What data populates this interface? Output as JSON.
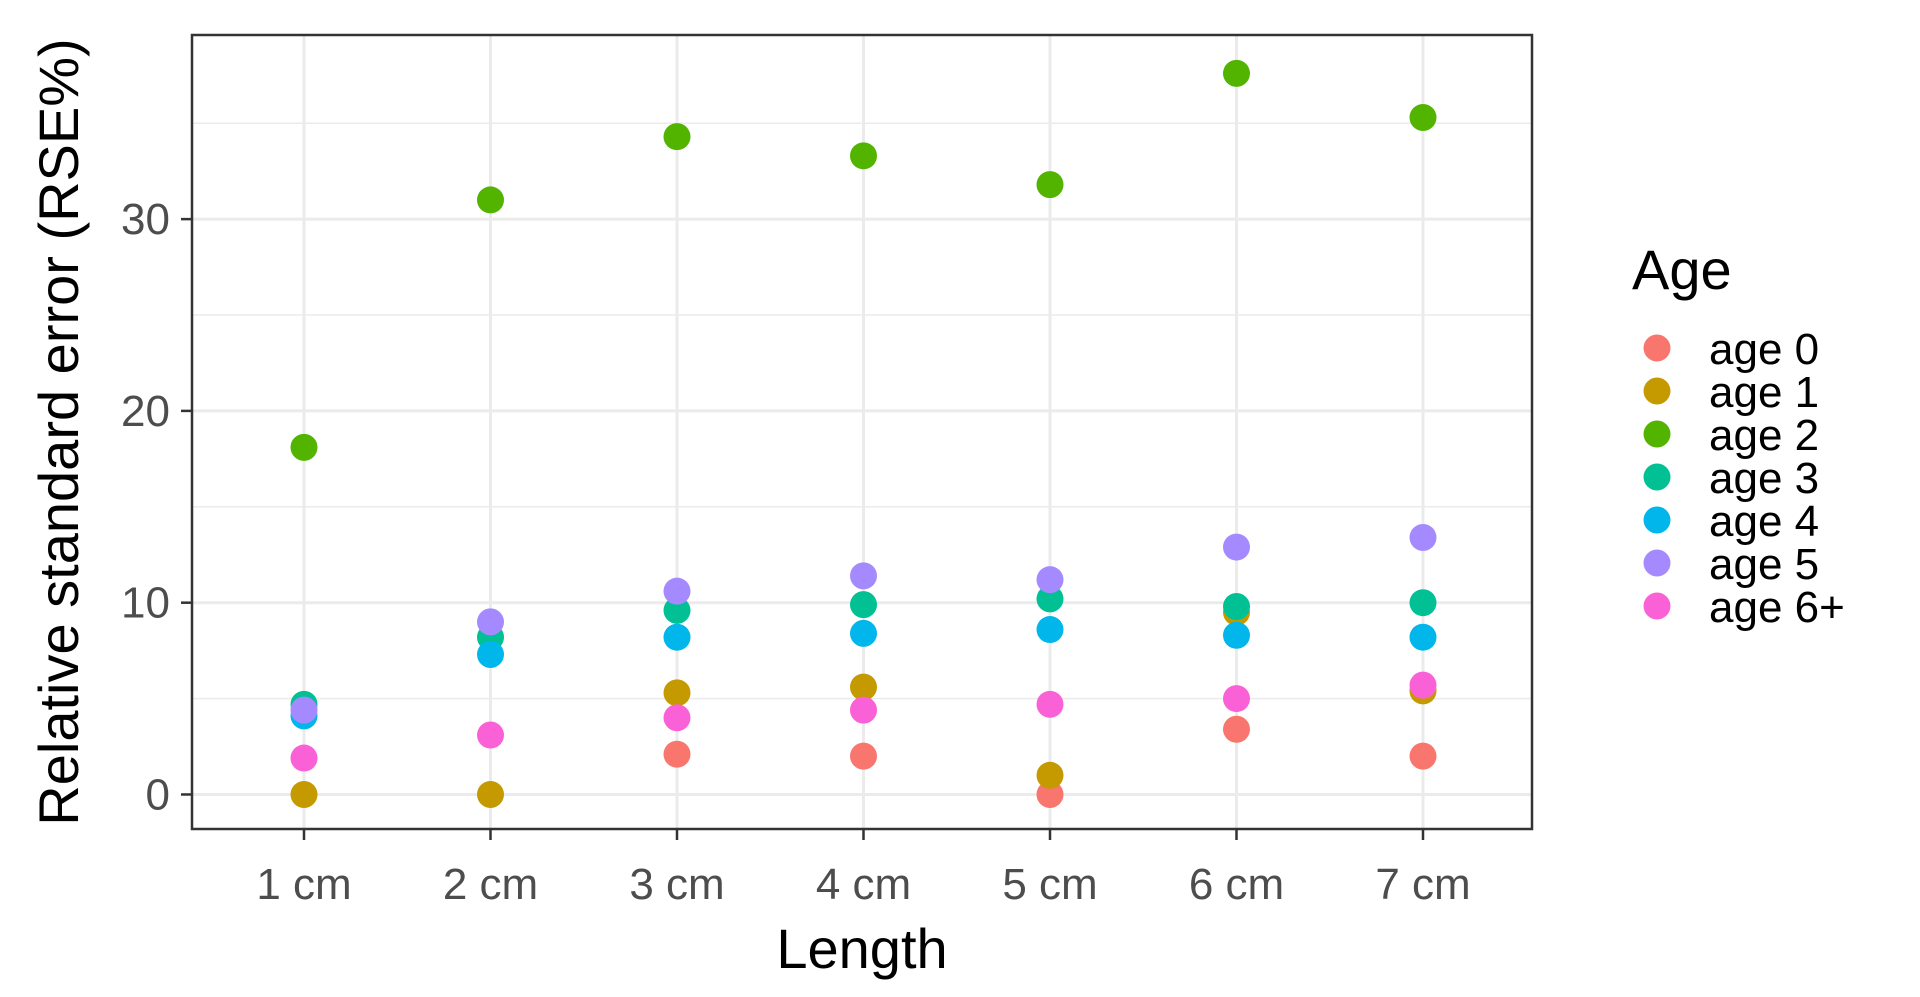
{
  "chart_data": {
    "type": "scatter",
    "title": "",
    "xlabel": "Length",
    "ylabel": "Relative standard error (RSE%)",
    "categories": [
      "1 cm",
      "2 cm",
      "3 cm",
      "4 cm",
      "5 cm",
      "6 cm",
      "7 cm"
    ],
    "yticks": [
      0,
      10,
      20,
      30
    ],
    "ytick_labels": [
      "0",
      "10",
      "20",
      "30"
    ],
    "ylim": [
      -1.8,
      39.6
    ],
    "grid": true,
    "legend": {
      "title": "Age",
      "placement": "right"
    },
    "series": [
      {
        "name": "age 0",
        "color": "#F8766D",
        "values": [
          null,
          null,
          2.1,
          2.0,
          0.0,
          3.4,
          2.0
        ]
      },
      {
        "name": "age 1",
        "color": "#C49A00",
        "values": [
          0.0,
          0.0,
          5.3,
          5.6,
          1.0,
          9.5,
          5.4
        ]
      },
      {
        "name": "age 2",
        "color": "#53B400",
        "values": [
          18.1,
          31.0,
          34.3,
          33.3,
          31.8,
          37.6,
          35.3
        ]
      },
      {
        "name": "age 3",
        "color": "#00C094",
        "values": [
          4.7,
          8.2,
          9.6,
          9.9,
          10.2,
          9.8,
          10.0
        ]
      },
      {
        "name": "age 4",
        "color": "#00B6EB",
        "values": [
          4.1,
          7.3,
          8.2,
          8.4,
          8.6,
          8.3,
          8.2
        ]
      },
      {
        "name": "age 5",
        "color": "#A58AFF",
        "values": [
          4.4,
          9.0,
          10.6,
          11.4,
          11.2,
          12.9,
          13.4
        ]
      },
      {
        "name": "age 6+",
        "color": "#FB61D7",
        "values": [
          1.9,
          3.1,
          4.0,
          4.4,
          4.7,
          5.0,
          5.7
        ]
      }
    ]
  }
}
